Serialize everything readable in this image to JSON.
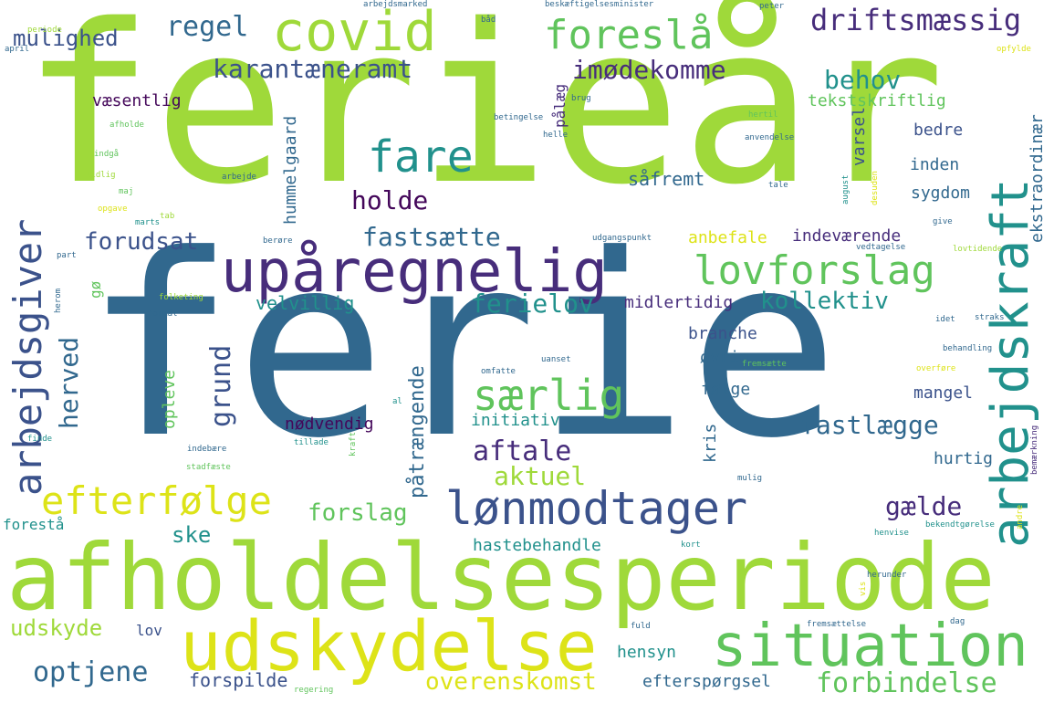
{
  "palette": {
    "light_green": "#9fd93a",
    "green": "#60c45c",
    "teal": "#21918c",
    "blue": "#31688e",
    "indigo": "#3b528b",
    "purple": "#472d7b",
    "dark_purple": "#44075a",
    "yellow": "#dde318",
    "pale_yellow": "#e8e35f"
  },
  "words": [
    "ferie",
    "ferieår",
    "afholdelsesperiode",
    "upåregnelig",
    "covid",
    "udskydelse",
    "situation",
    "arbejdskraft",
    "lønmodtager",
    "arbejdsgiver",
    "lovforslag",
    "foreslå",
    "fare",
    "særlig",
    "efterfølge",
    "driftsmæssig",
    "regel",
    "karantæneramt",
    "imødekomme",
    "behov",
    "mulighed",
    "holde",
    "forudsat",
    "fastsætte",
    "ferielov",
    "kollektiv",
    "aftale",
    "aktuel",
    "fastlægge",
    "grund",
    "herved",
    "forslag",
    "gælde",
    "ske",
    "udskyde",
    "optjene",
    "overenskomst",
    "forbindelse",
    "forspilde",
    "efterspørgsel",
    "hensyn",
    "hastebehandle",
    "nødvendig",
    "initiativ",
    "påtrængende",
    "midlertidig",
    "velvillig",
    "anbefale",
    "indeværende",
    "ekstraordinær",
    "tekstskriftlig",
    "væsentlig",
    "hummelgaard",
    "pålæg",
    "varsel",
    "bedre",
    "inden",
    "sygdom",
    "såfremt",
    "branche",
    "øvrig",
    "følge",
    "mangel",
    "kris",
    "hurtig",
    "opleve",
    "lov",
    "forestå",
    "gø",
    "arbejdsmarked",
    "beskæftigelsesminister",
    "peter",
    "periode",
    "april",
    "opfylde",
    "hertil",
    "brug",
    "helle",
    "betingelse",
    "anvendelse",
    "afholde",
    "indgå",
    "tidlig",
    "maj",
    "opgave",
    "marts",
    "tab",
    "arbejde",
    "august",
    "desuden",
    "tale",
    "give",
    "vedtagelse",
    "lovtidende",
    "udgangspunkt",
    "berøre",
    "part",
    "folketing",
    "formål",
    "herom",
    "idet",
    "straks",
    "behandling",
    "overføre",
    "omfatte",
    "uanset",
    "fremsætte",
    "al",
    "finde",
    "tillade",
    "indebære",
    "stadfæste",
    "mulig",
    "bemærkning",
    "andre",
    "bekendtgørelse",
    "henvise",
    "herunder",
    "kort",
    "vis",
    "fuld",
    "fremsættelse",
    "dag",
    "regering",
    "kraft",
    "båd"
  ]
}
